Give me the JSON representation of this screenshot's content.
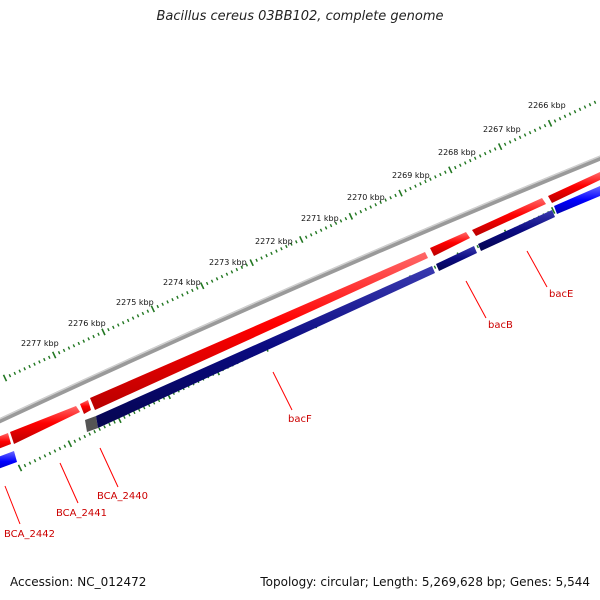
{
  "title": "Bacillus cereus 03BB102, complete genome",
  "footer": {
    "accession": "Accession: NC_012472",
    "summary": "Topology: circular; Length: 5,269,628 bp; Genes: 5,544"
  },
  "ruler": {
    "unit": "kbp",
    "labels": [
      "2266 kbp",
      "2267 kbp",
      "2268 kbp",
      "2269 kbp",
      "2270 kbp",
      "2271 kbp",
      "2272 kbp",
      "2273 kbp",
      "2274 kbp",
      "2275 kbp",
      "2276 kbp",
      "2277 kbp"
    ]
  },
  "genes": [
    {
      "name": "bacE",
      "strand": "reverse",
      "color": "#0a0a80"
    },
    {
      "name": "bacB",
      "strand": "reverse",
      "color": "#0a0a80"
    },
    {
      "name": "bacF",
      "strand": "reverse",
      "color": "#0a0a80"
    },
    {
      "name": "BCA_2440",
      "strand": "reverse",
      "color": "#555555"
    },
    {
      "name": "BCA_2441",
      "strand": "forward",
      "color": "#ff0000"
    },
    {
      "name": "BCA_2442",
      "strand": "reverse",
      "color": "#0000ff"
    }
  ],
  "colors": {
    "backbone": "#888888",
    "forward_cds": "#ff0000",
    "reverse_cds": "#0a0a80",
    "reverse_other": "#0000ff",
    "ruler_ticks": "#227722",
    "label_text": "#cc0000"
  }
}
